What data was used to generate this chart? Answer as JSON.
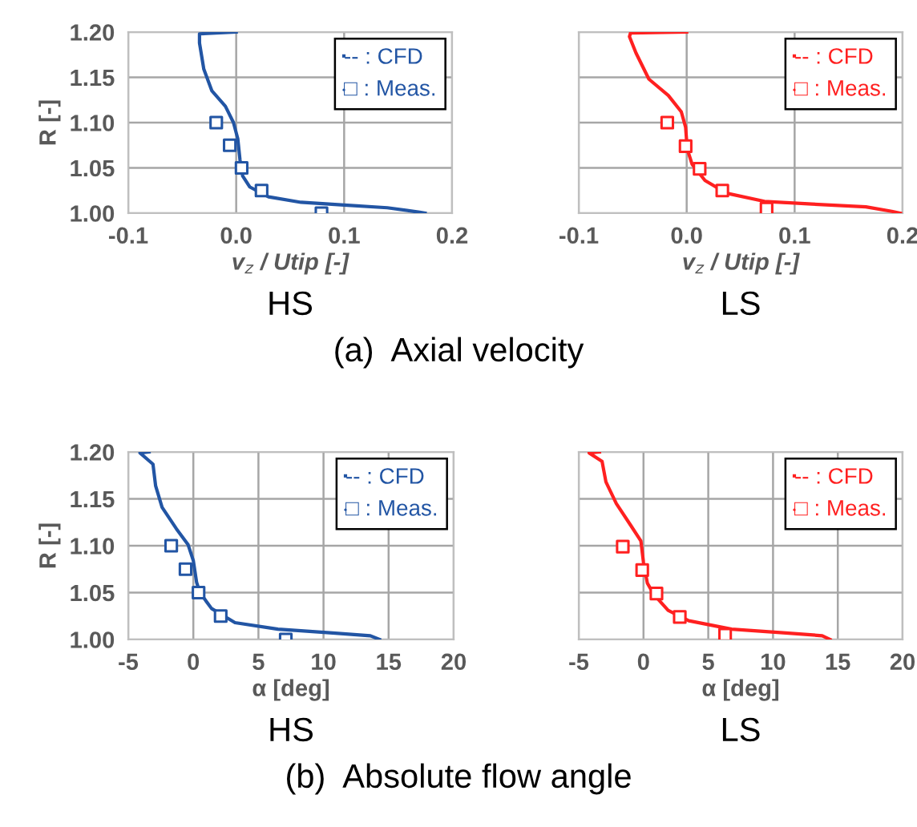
{
  "chart_data": [
    {
      "type": "line",
      "xlabel": "v$_{z}$ / Utip [-]",
      "ylabel": "R [-]",
      "xlim": [
        -0.1,
        0.2
      ],
      "xticks": [
        -0.1,
        {
          "value": 0,
          "label": "0.0"
        },
        0.1,
        0.2
      ],
      "ylim": [
        1.0,
        1.2
      ],
      "yticks": [
        {
          "value": 1.0,
          "label": "1.00"
        },
        {
          "value": 1.05,
          "label": "1.05"
        },
        {
          "value": 1.1,
          "label": "1.10"
        },
        {
          "value": 1.15,
          "label": "1.15"
        },
        {
          "value": 1.2,
          "label": "1.20"
        }
      ],
      "grid": true,
      "legend": "top right",
      "annotations": [
        "HS",
        "(a)  Axial velocity"
      ],
      "series": [
        {
          "name": "-- : CFD",
          "marker": "none",
          "color": "#2255a4",
          "x": [
            0,
            -0.034,
            -0.034,
            -0.03,
            -0.0225,
            -0.01,
            -0.0025,
            0.0015,
            0.0035,
            0.006,
            0.0125,
            0.03,
            0.06,
            0.1,
            0.14,
            0.17,
            0.175
          ],
          "values": [
            1.2,
            1.198,
            1.188,
            1.159,
            1.135,
            1.118,
            1.1,
            1.082,
            1.059,
            1.041,
            1.029,
            1.018,
            1.012,
            1.009,
            1.006,
            1.001,
            1.0
          ]
        },
        {
          "name": "□ : Meas.",
          "type": "scatter",
          "marker": "square",
          "color": "#2255a4",
          "x": [
            -0.0185,
            -0.006,
            0.005,
            0.0235,
            0.079
          ],
          "values": [
            1.1,
            1.075,
            1.05,
            1.025,
            1.0
          ]
        }
      ]
    },
    {
      "type": "line",
      "xlabel": "v$_{z}$ / Utip [-]",
      "xlim": [
        -0.1,
        0.2
      ],
      "xticks": [
        -0.1,
        {
          "value": 0,
          "label": "0.0"
        },
        0.1,
        0.2
      ],
      "ylim": [
        1.0,
        1.2
      ],
      "yticks": [
        {
          "value": 1.0,
          "label": null
        },
        {
          "value": 1.05,
          "label": null
        },
        {
          "value": 1.1,
          "label": null
        },
        {
          "value": 1.15,
          "label": null
        },
        {
          "value": 1.2,
          "label": null
        }
      ],
      "tick_labels": "x",
      "grid": true,
      "legend": "top right",
      "annotations": [
        "LS"
      ],
      "series": [
        {
          "name": "-- : CFD",
          "marker": "none",
          "color": "#ff2020",
          "x": [
            0,
            -0.052,
            -0.053,
            -0.047,
            -0.035,
            -0.017,
            -0.005,
            -0.001,
            0.0005,
            0.005,
            0.017,
            0.037,
            0.072,
            0.116,
            0.166,
            0.19,
            0.198
          ],
          "values": [
            1.2,
            1.199,
            1.195,
            1.177,
            1.148,
            1.13,
            1.112,
            1.095,
            1.071,
            1.054,
            1.036,
            1.022,
            1.013,
            1.01,
            1.007,
            1.002,
            1.0
          ]
        },
        {
          "name": "□ : Meas.",
          "type": "scatter",
          "marker": "square",
          "color": "#ff2020",
          "x": [
            -0.018,
            -0.001,
            0.012,
            0.033,
            0.074
          ],
          "values": [
            1.1,
            1.074,
            1.049,
            1.025,
            1.005
          ]
        }
      ]
    },
    {
      "type": "line",
      "xlabel": "α [deg]",
      "ylabel": "R [-]",
      "xlim": [
        -5,
        20
      ],
      "xticks": [
        -5,
        0,
        5,
        10,
        15,
        20
      ],
      "ylim": [
        1.0,
        1.2
      ],
      "yticks": [
        {
          "value": 1.0,
          "label": "1.00"
        },
        {
          "value": 1.05,
          "label": "1.05"
        },
        {
          "value": 1.1,
          "label": "1.10"
        },
        {
          "value": 1.15,
          "label": "1.15"
        },
        {
          "value": 1.2,
          "label": "1.20"
        }
      ],
      "grid": true,
      "legend": "top right",
      "annotations": [
        "HS",
        "(b)  Absolute flow angle"
      ],
      "series": [
        {
          "name": "-- : CFD",
          "marker": "none",
          "color": "#2255a4",
          "x": [
            -3.4,
            -4.1,
            -3.1,
            -2.9,
            -2.4,
            -1.3,
            -0.4,
            0,
            0.25,
            0.5,
            1.4,
            3.2,
            6.5,
            10.7,
            13.6,
            14.3
          ],
          "values": [
            1.2,
            1.199,
            1.187,
            1.164,
            1.141,
            1.118,
            1.101,
            1.084,
            1.061,
            1.05,
            1.033,
            1.018,
            1.011,
            1.007,
            1.004,
            1.0
          ]
        },
        {
          "name": "□ : Meas.",
          "type": "scatter",
          "marker": "square",
          "color": "#2255a4",
          "x": [
            -1.7,
            -0.6,
            0.4,
            2.1,
            7.1
          ],
          "values": [
            1.1,
            1.075,
            1.05,
            1.025,
            1.0
          ]
        }
      ]
    },
    {
      "type": "line",
      "xlabel": "α [deg]",
      "xlim": [
        -5,
        20
      ],
      "xticks": [
        -5,
        0,
        5,
        10,
        15,
        20
      ],
      "ylim": [
        1.0,
        1.2
      ],
      "yticks": [
        {
          "value": 1.0,
          "label": null
        },
        {
          "value": 1.05,
          "label": null
        },
        {
          "value": 1.1,
          "label": null
        },
        {
          "value": 1.15,
          "label": null
        },
        {
          "value": 1.2,
          "label": null
        }
      ],
      "tick_labels": "x",
      "grid": true,
      "legend": "top right",
      "annotations": [
        "LS"
      ],
      "series": [
        {
          "name": "-- : CFD",
          "marker": "none",
          "color": "#ff2020",
          "x": [
            -3.4,
            -4.2,
            -3.2,
            -2.9,
            -2.1,
            -1.0,
            -0.2,
            0,
            0.3,
            0.8,
            1.9,
            3.5,
            6.8,
            11.0,
            13.8,
            14.4
          ],
          "values": [
            1.2,
            1.199,
            1.19,
            1.168,
            1.145,
            1.122,
            1.105,
            1.082,
            1.06,
            1.048,
            1.031,
            1.02,
            1.011,
            1.007,
            1.004,
            1.0
          ]
        },
        {
          "name": "□ : Meas.",
          "type": "scatter",
          "marker": "square",
          "color": "#ff2020",
          "x": [
            -1.6,
            -0.1,
            1.0,
            2.8,
            6.3
          ],
          "values": [
            1.099,
            1.074,
            1.049,
            1.024,
            1.005
          ]
        }
      ]
    }
  ]
}
